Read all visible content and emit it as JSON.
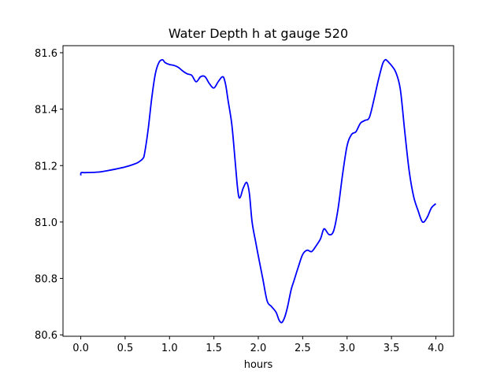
{
  "chart_data": {
    "type": "line",
    "title": "Water Depth h at gauge 520",
    "xlabel": "hours",
    "ylabel": "",
    "xlim": [
      -0.2,
      4.2
    ],
    "ylim": [
      80.595,
      81.625
    ],
    "xticks": [
      0.0,
      0.5,
      1.0,
      1.5,
      2.0,
      2.5,
      3.0,
      3.5,
      4.0
    ],
    "xtick_labels": [
      "0.0",
      "0.5",
      "1.0",
      "1.5",
      "2.0",
      "2.5",
      "3.0",
      "3.5",
      "4.0"
    ],
    "yticks": [
      80.6,
      80.8,
      81.0,
      81.2,
      81.4,
      81.6
    ],
    "ytick_labels": [
      "80.6",
      "80.8",
      "81.0",
      "81.2",
      "81.4",
      "81.6"
    ],
    "grid": false,
    "series": [
      {
        "name": "h",
        "color": "#0000ff",
        "x": [
          0.0,
          0.005,
          0.05,
          0.2,
          0.3,
          0.4,
          0.5,
          0.6,
          0.65,
          0.7,
          0.72,
          0.76,
          0.8,
          0.84,
          0.88,
          0.92,
          0.95,
          1.0,
          1.05,
          1.1,
          1.15,
          1.2,
          1.25,
          1.3,
          1.35,
          1.4,
          1.45,
          1.5,
          1.55,
          1.6,
          1.63,
          1.66,
          1.7,
          1.73,
          1.76,
          1.78,
          1.8,
          1.83,
          1.87,
          1.9,
          1.93,
          1.97,
          2.0,
          2.05,
          2.1,
          2.15,
          2.2,
          2.23,
          2.25,
          2.27,
          2.3,
          2.33,
          2.37,
          2.4,
          2.45,
          2.5,
          2.55,
          2.6,
          2.65,
          2.7,
          2.73,
          2.75,
          2.8,
          2.85,
          2.9,
          2.95,
          3.0,
          3.05,
          3.1,
          3.15,
          3.2,
          3.25,
          3.3,
          3.35,
          3.4,
          3.43,
          3.45,
          3.48,
          3.5,
          3.55,
          3.6,
          3.65,
          3.7,
          3.75,
          3.8,
          3.85,
          3.9,
          3.95,
          4.0
        ],
        "y": [
          81.165,
          81.175,
          81.175,
          81.177,
          81.182,
          81.188,
          81.195,
          81.205,
          81.212,
          81.225,
          81.245,
          81.33,
          81.44,
          81.525,
          81.565,
          81.575,
          81.565,
          81.558,
          81.555,
          81.548,
          81.535,
          81.525,
          81.52,
          81.497,
          81.515,
          81.515,
          81.49,
          81.475,
          81.498,
          81.515,
          81.49,
          81.43,
          81.35,
          81.25,
          81.14,
          81.09,
          81.09,
          81.12,
          81.14,
          81.1,
          81.0,
          80.93,
          80.88,
          80.8,
          80.72,
          80.7,
          80.68,
          80.655,
          80.645,
          80.645,
          80.665,
          80.7,
          80.76,
          80.79,
          80.84,
          80.885,
          80.9,
          80.895,
          80.915,
          80.94,
          80.97,
          80.975,
          80.955,
          80.97,
          81.05,
          81.17,
          81.27,
          81.31,
          81.32,
          81.35,
          81.36,
          81.37,
          81.43,
          81.5,
          81.56,
          81.575,
          81.572,
          81.562,
          81.555,
          81.53,
          81.47,
          81.32,
          81.18,
          81.09,
          81.04,
          81.0,
          81.015,
          81.05,
          81.065
        ]
      }
    ]
  }
}
